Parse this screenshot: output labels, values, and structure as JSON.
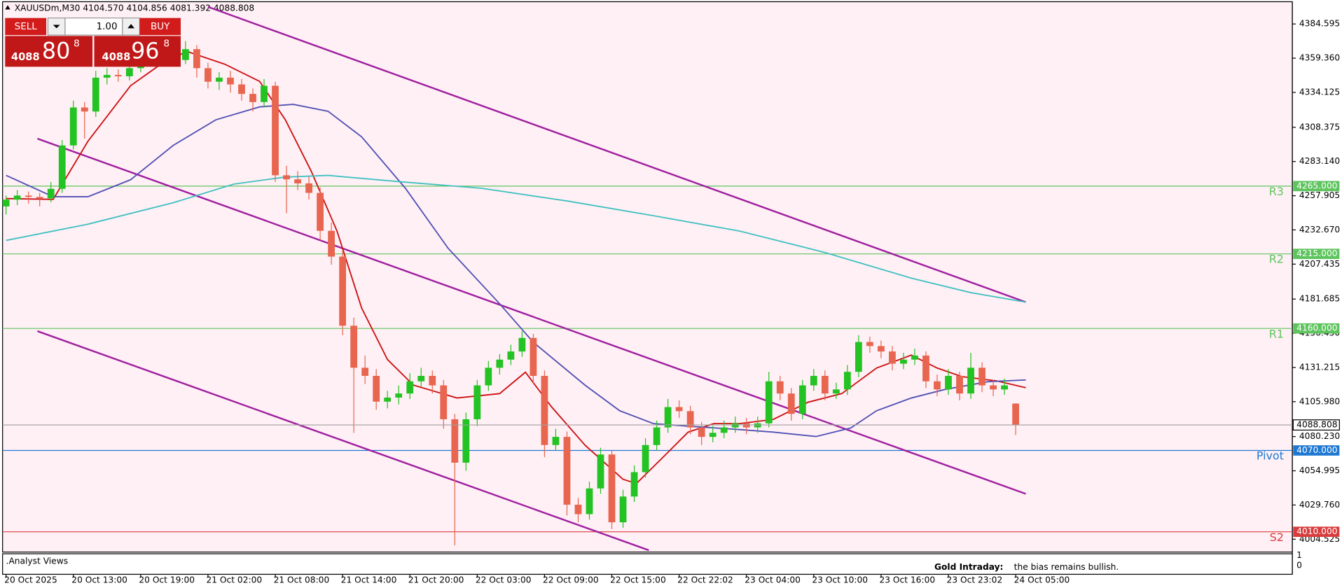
{
  "chart_data": {
    "type": "candlestick",
    "header": "XAUUSDm,M30  4104.570 4104.856 4081.392 4088.808",
    "trade_panel": {
      "sell": "SELL",
      "buy": "BUY",
      "lot": "1.00",
      "bid": {
        "big": "4088",
        "main": "80",
        "small": "8"
      },
      "ask": {
        "big": "4088",
        "main": "96",
        "small": "8"
      }
    },
    "colors": {
      "up": "#22c322",
      "down": "#e8654f",
      "background": "#fff0f5"
    },
    "candles": [
      [
        4250,
        4258,
        4244,
        4255
      ],
      [
        4255,
        4262,
        4251,
        4258
      ],
      [
        4258,
        4261,
        4252,
        4257
      ],
      [
        4257,
        4260,
        4250,
        4256
      ],
      [
        4256,
        4268,
        4253,
        4263
      ],
      [
        4263,
        4299,
        4260,
        4295
      ],
      [
        4295,
        4328,
        4292,
        4323
      ],
      [
        4323,
        4327,
        4300,
        4320
      ],
      [
        4320,
        4350,
        4316,
        4345
      ],
      [
        4345,
        4352,
        4340,
        4347
      ],
      [
        4347,
        4351,
        4342,
        4346
      ],
      [
        4346,
        4356,
        4343,
        4352
      ],
      [
        4352,
        4362,
        4349,
        4358
      ],
      [
        4358,
        4366,
        4354,
        4361
      ],
      [
        4361,
        4372,
        4357,
        4363
      ],
      [
        4363,
        4367,
        4353,
        4358
      ],
      [
        4358,
        4372,
        4355,
        4366
      ],
      [
        4366,
        4369,
        4345,
        4352
      ],
      [
        4352,
        4356,
        4337,
        4342
      ],
      [
        4342,
        4349,
        4336,
        4345
      ],
      [
        4345,
        4350,
        4334,
        4340
      ],
      [
        4340,
        4344,
        4328,
        4333
      ],
      [
        4333,
        4337,
        4320,
        4327
      ],
      [
        4327,
        4344,
        4323,
        4339
      ],
      [
        4339,
        4342,
        4268,
        4273
      ],
      [
        4273,
        4280,
        4245,
        4270
      ],
      [
        4270,
        4276,
        4262,
        4267
      ],
      [
        4267,
        4272,
        4255,
        4260
      ],
      [
        4260,
        4264,
        4225,
        4232
      ],
      [
        4232,
        4238,
        4207,
        4213
      ],
      [
        4213,
        4218,
        4155,
        4162
      ],
      [
        4162,
        4168,
        4083,
        4131
      ],
      [
        4131,
        4140,
        4119,
        4125
      ],
      [
        4125,
        4130,
        4100,
        4106
      ],
      [
        4106,
        4114,
        4101,
        4109
      ],
      [
        4109,
        4118,
        4104,
        4112
      ],
      [
        4112,
        4127,
        4108,
        4121
      ],
      [
        4121,
        4131,
        4117,
        4125
      ],
      [
        4125,
        4129,
        4112,
        4118
      ],
      [
        4118,
        4122,
        4086,
        4093
      ],
      [
        4093,
        4097,
        4000,
        4061
      ],
      [
        4061,
        4098,
        4055,
        4093
      ],
      [
        4093,
        4122,
        4088,
        4118
      ],
      [
        4118,
        4136,
        4114,
        4131
      ],
      [
        4131,
        4141,
        4126,
        4137
      ],
      [
        4137,
        4148,
        4133,
        4143
      ],
      [
        4143,
        4158,
        4139,
        4153
      ],
      [
        4153,
        4156,
        4119,
        4125
      ],
      [
        4125,
        4129,
        4065,
        4074
      ],
      [
        4074,
        4086,
        4070,
        4080
      ],
      [
        4080,
        4084,
        4022,
        4030
      ],
      [
        4030,
        4035,
        4017,
        4023
      ],
      [
        4023,
        4047,
        4019,
        4042
      ],
      [
        4042,
        4072,
        4038,
        4067
      ],
      [
        4067,
        4070,
        4012,
        4017
      ],
      [
        4017,
        4041,
        4013,
        4036
      ],
      [
        4036,
        4059,
        4032,
        4054
      ],
      [
        4054,
        4079,
        4050,
        4074
      ],
      [
        4074,
        4092,
        4070,
        4087
      ],
      [
        4087,
        4108,
        4083,
        4102
      ],
      [
        4102,
        4107,
        4094,
        4099
      ],
      [
        4099,
        4103,
        4082,
        4087
      ],
      [
        4087,
        4091,
        4074,
        4080
      ],
      [
        4080,
        4088,
        4076,
        4083
      ],
      [
        4083,
        4092,
        4079,
        4087
      ],
      [
        4087,
        4095,
        4083,
        4090
      ],
      [
        4090,
        4094,
        4082,
        4087
      ],
      [
        4087,
        4095,
        4083,
        4090
      ],
      [
        4090,
        4128,
        4087,
        4121
      ],
      [
        4121,
        4125,
        4107,
        4112
      ],
      [
        4112,
        4116,
        4092,
        4097
      ],
      [
        4097,
        4122,
        4093,
        4118
      ],
      [
        4118,
        4130,
        4114,
        4125
      ],
      [
        4125,
        4129,
        4107,
        4112
      ],
      [
        4112,
        4120,
        4108,
        4115
      ],
      [
        4115,
        4133,
        4111,
        4128
      ],
      [
        4128,
        4155,
        4124,
        4150
      ],
      [
        4150,
        4154,
        4142,
        4147
      ],
      [
        4147,
        4151,
        4138,
        4143
      ],
      [
        4143,
        4147,
        4129,
        4134
      ],
      [
        4134,
        4142,
        4130,
        4137
      ],
      [
        4137,
        4145,
        4133,
        4140
      ],
      [
        4140,
        4143,
        4116,
        4121
      ],
      [
        4121,
        4126,
        4110,
        4115
      ],
      [
        4115,
        4130,
        4111,
        4125
      ],
      [
        4125,
        4128,
        4107,
        4112
      ],
      [
        4112,
        4142,
        4108,
        4131
      ],
      [
        4131,
        4135,
        4113,
        4118
      ],
      [
        4118,
        4122,
        4110,
        4115
      ],
      [
        4115,
        4123,
        4111,
        4118
      ],
      [
        4104.57,
        4104.856,
        4081.392,
        4088.808
      ]
    ],
    "series": [
      {
        "color": "#cc1010",
        "x": [
          0,
          4.2,
          7.3,
          11.1,
          13.8,
          16.1,
          19.5,
          22.6,
          24.9,
          27.2,
          29.5,
          31.7,
          34,
          36.3,
          40.2,
          44,
          46.3,
          48.6,
          51.6,
          55,
          56.2,
          58.5,
          60.8,
          63.1,
          65.4,
          68.4,
          71.5,
          74.5,
          77.6,
          80.7,
          83,
          85.2,
          88.3,
          90.9
        ],
        "values": [
          4255.8,
          4255.2,
          4298.1,
          4339.1,
          4354.9,
          4364.4,
          4354.9,
          4342.3,
          4313.9,
          4276,
          4231.8,
          4175,
          4137.1,
          4118.2,
          4108.7,
          4111.9,
          4127.7,
          4102.4,
          4074,
          4048.7,
          4045.6,
          4064.5,
          4083.5,
          4089.8,
          4089.8,
          4092.9,
          4105.6,
          4111.9,
          4130.8,
          4140.3,
          4130.8,
          4124.5,
          4121.3,
          4116.3
        ]
      },
      {
        "color": "#5050b4",
        "x": [
          0,
          4.2,
          7.3,
          11.1,
          14.9,
          18.7,
          22.6,
          25.6,
          28.7,
          31.7,
          35.6,
          39.4,
          44,
          47,
          51.6,
          54.7,
          57.7,
          60.8,
          65.4,
          68.4,
          72.2,
          75.3,
          77.6,
          80.7,
          83.7,
          87.5,
          90.9
        ],
        "values": [
          4272.9,
          4257.1,
          4257.1,
          4269.7,
          4295,
          4313.9,
          4323.4,
          4325.3,
          4320.2,
          4301.3,
          4263.4,
          4219.2,
          4178.2,
          4149.8,
          4118.2,
          4099.3,
          4089.8,
          4087.9,
          4085.4,
          4083.5,
          4080.3,
          4086.6,
          4099.3,
          4108.7,
          4115,
          4120.7,
          4122
        ]
      },
      {
        "color": "#40c0c0",
        "x": [
          0,
          7.3,
          14.9,
          20.3,
          24.8,
          28.7,
          34.8,
          42.4,
          50.1,
          57.7,
          65.4,
          73,
          80.7,
          86,
          90.9
        ],
        "values": [
          4224.9,
          4236.9,
          4252.7,
          4266.5,
          4271.6,
          4272.9,
          4268.4,
          4263.4,
          4253.9,
          4243.2,
          4231.8,
          4216,
          4197.1,
          4186.4,
          4179.4
        ]
      }
    ],
    "trendlines": [
      {
        "color": "#a020a0",
        "x": [
          18,
          90.9
        ],
        "values": [
          4397.2,
          4179.4
        ]
      },
      {
        "color": "#a020a0",
        "x": [
          2.8,
          90.9
        ],
        "values": [
          4300,
          4038
        ]
      },
      {
        "color": "#a020a0",
        "x": [
          2.8,
          57.3
        ],
        "values": [
          4158,
          3996.4
        ]
      }
    ],
    "levels": [
      {
        "name": "R3",
        "value": 4265,
        "value_label": "4265.000",
        "color": "#5ec45e"
      },
      {
        "name": "R2",
        "value": 4215,
        "value_label": "4215.000",
        "color": "#5ec45e"
      },
      {
        "name": "R1",
        "value": 4160,
        "value_label": "4160.000",
        "color": "#5ec45e"
      },
      {
        "name": "Pivot",
        "value": 4070,
        "value_label": "4070.000",
        "color": "#1e78d2"
      },
      {
        "name": "S2",
        "value": 4010,
        "value_label": "4010.000",
        "color": "#d83c3c"
      }
    ],
    "last_price": 4088.808,
    "xlim": [
      -0.31,
      114.66
    ],
    "ylim": [
      3995.05,
      4401.01
    ],
    "yticks": [
      4384.595,
      {
        "value": 4359.36,
        "label": "4359.360"
      },
      4334.125,
      4308.375,
      {
        "value": 4283.14,
        "label": "4283.140"
      },
      4257.905,
      {
        "value": 4232.67,
        "label": "4232.670"
      },
      4207.435,
      4181.685,
      {
        "value": 4156.45,
        "label": "4156.450"
      },
      4131.215,
      {
        "value": 4105.98,
        "label": "4105.980"
      },
      {
        "value": 4080.23,
        "label": "4080.230"
      },
      4054.995,
      {
        "value": 4029.76,
        "label": "4029.760"
      },
      4004.525
    ],
    "xticks": [
      {
        "value": 0,
        "label": "20 Oct 2025"
      },
      {
        "value": 6,
        "label": "20 Oct 13:00"
      },
      {
        "value": 12,
        "label": "20 Oct 19:00"
      },
      {
        "value": 18,
        "label": "21 Oct 02:00"
      },
      {
        "value": 24,
        "label": "21 Oct 08:00"
      },
      {
        "value": 30,
        "label": "21 Oct 14:00"
      },
      {
        "value": 36,
        "label": "21 Oct 20:00"
      },
      {
        "value": 42,
        "label": "22 Oct 03:00"
      },
      {
        "value": 48,
        "label": "22 Oct 09:00"
      },
      {
        "value": 54,
        "label": "22 Oct 15:00"
      },
      {
        "value": 60,
        "label": "22 Oct 22:02"
      },
      {
        "value": 66,
        "label": "23 Oct 04:00"
      },
      {
        "value": 72,
        "label": "23 Oct 10:00"
      },
      {
        "value": 78,
        "label": "23 Oct 16:00"
      },
      {
        "value": 84,
        "label": "23 Oct 23:02"
      },
      {
        "value": 90,
        "label": "24 Oct 05:00"
      }
    ],
    "indicator": {
      "name": ".Analyst Views",
      "note_title": "Gold Intraday:",
      "note_text": "the bias remains bullish.",
      "scale_top": 1,
      "scale_bottom": 0
    }
  }
}
